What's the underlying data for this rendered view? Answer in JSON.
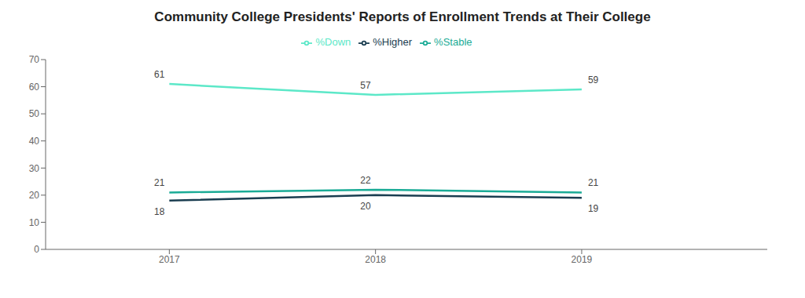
{
  "chart_data": {
    "type": "line",
    "title": "Community College Presidents' Reports of Enrollment Trends at Their College",
    "x": [
      2017,
      2018,
      2019
    ],
    "series": [
      {
        "name": "%Down",
        "color": "#5ce8c8",
        "values": [
          61,
          57,
          59
        ]
      },
      {
        "name": "%Stable",
        "color": "#1aab96",
        "values": [
          21,
          22,
          21
        ]
      },
      {
        "name": "%Higher",
        "color": "#1a3d50",
        "values": [
          18,
          20,
          19
        ]
      }
    ],
    "xlim": [
      2016.4,
      2019.9
    ],
    "xticks": [
      2017,
      2018,
      2019
    ],
    "ylim": [
      0,
      70
    ],
    "yticks": [
      0,
      10,
      20,
      30,
      40,
      50,
      60,
      70
    ],
    "grid": false,
    "legend": "top",
    "data_labels": true
  }
}
